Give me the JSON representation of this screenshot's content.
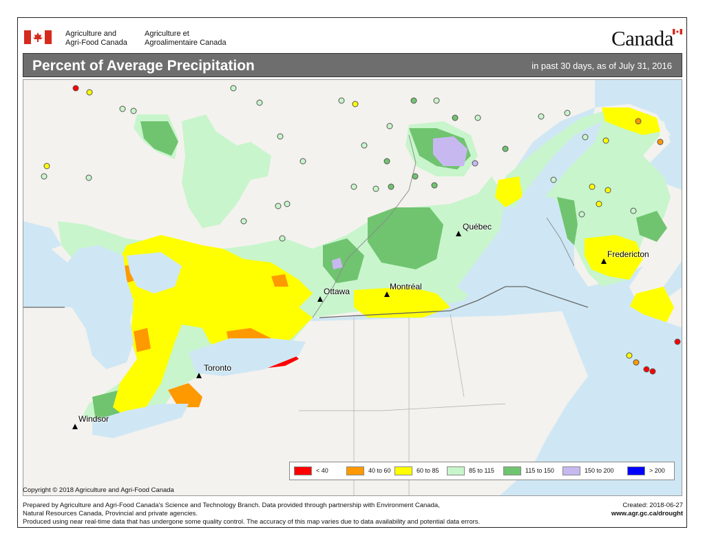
{
  "header": {
    "dept_en_line1": "Agriculture and",
    "dept_en_line2": "Agri-Food Canada",
    "dept_fr_line1": "Agriculture et",
    "dept_fr_line2": "Agroalimentaire Canada",
    "wordmark": "Canada"
  },
  "title": {
    "main": "Percent of Average Precipitation",
    "subtitle": "in past 30 days, as of July 31, 2016"
  },
  "cities": [
    {
      "name": "Québec"
    },
    {
      "name": "Ottawa"
    },
    {
      "name": "Montréal"
    },
    {
      "name": "Fredericton"
    },
    {
      "name": "Toronto"
    },
    {
      "name": "Windsor"
    }
  ],
  "legend": [
    {
      "label": "< 40",
      "color": "#ff0000"
    },
    {
      "label": "40 to 60",
      "color": "#ff9900"
    },
    {
      "label": "60 to 85",
      "color": "#ffff00"
    },
    {
      "label": "85 to 115",
      "color": "#c8f5cc"
    },
    {
      "label": "115 to 150",
      "color": "#70c470"
    },
    {
      "label": "150 to 200",
      "color": "#c8b8f0"
    },
    {
      "label": "> 200",
      "color": "#0000ff"
    }
  ],
  "copyright": "Copyright © 2018 Agriculture and Agri-Food Canada",
  "footer": {
    "line1": "Prepared by Agriculture and Agri-Food Canada's Science and Technology Branch. Data provided through partnership with Environment Canada,",
    "line2": "Natural Resources Canada, Provincial and private agencies.",
    "line3": "Produced using near real-time data that has undergone some quality control. The accuracy of this map varies due to data availability and potential data errors.",
    "created": "Created: 2018-06-27",
    "url": "www.agr.gc.ca/drought"
  }
}
